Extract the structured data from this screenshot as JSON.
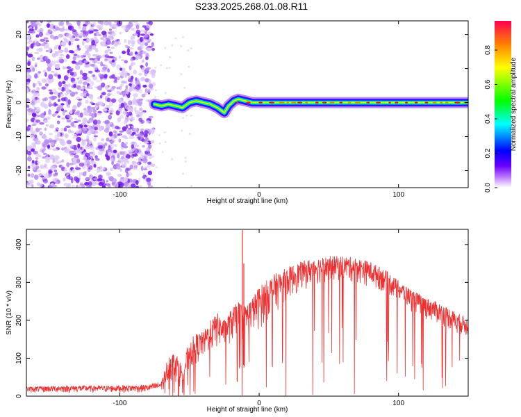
{
  "figure_title": "S233.2025.268.01.08.R11",
  "colors": {
    "line": "#f03030",
    "axis": "#000000",
    "scatter_light": "#dcc8f8",
    "scatter_mid": "#b88cf0",
    "scatter_dark": "#7a1ff0"
  },
  "chart_data": [
    {
      "type": "heatmap",
      "title": "",
      "xlabel": "Height of straight line (km)",
      "ylabel": "Frequency (Hz)",
      "xlim": [
        -167,
        150
      ],
      "ylim": [
        -25,
        24
      ],
      "xticks": [
        -100,
        0,
        100
      ],
      "xtick_labels": [
        "-100",
        "0",
        "100"
      ],
      "yticks": [
        -20,
        -10,
        0,
        10,
        20
      ],
      "ytick_labels": [
        "-20",
        "-10",
        "0",
        "10",
        "20"
      ],
      "colorbar": {
        "label": "Normalized spectral amplitude",
        "range": [
          0,
          0.97
        ],
        "ticks": [
          0.0,
          0.2,
          0.4,
          0.6,
          0.8
        ],
        "tick_labels": [
          "0.0",
          "0.2",
          "0.4",
          "0.6",
          "0.8"
        ],
        "colormap": [
          "#ffffff",
          "#6a00ff",
          "#0000ff",
          "#00ffff",
          "#00ff00",
          "#ffff00",
          "#ff8000",
          "#ff0050"
        ]
      },
      "noise_region": {
        "x_range": [
          -167,
          -75
        ],
        "y_range": [
          -25,
          24
        ],
        "level": 0.15
      },
      "ridge": [
        {
          "x": -75,
          "y": -0.5
        },
        {
          "x": -70,
          "y": -1
        },
        {
          "x": -65,
          "y": -0.5
        },
        {
          "x": -60,
          "y": -1
        },
        {
          "x": -55,
          "y": -1.5
        },
        {
          "x": -50,
          "y": 0
        },
        {
          "x": -45,
          "y": 0.5
        },
        {
          "x": -40,
          "y": 0
        },
        {
          "x": -35,
          "y": -0.5
        },
        {
          "x": -30,
          "y": -1.5
        },
        {
          "x": -25,
          "y": -3
        },
        {
          "x": -22,
          "y": -1
        },
        {
          "x": -18,
          "y": 0.5
        },
        {
          "x": -15,
          "y": 1
        },
        {
          "x": -10,
          "y": 0.5
        },
        {
          "x": -5,
          "y": 0
        },
        {
          "x": 0,
          "y": 0
        },
        {
          "x": 50,
          "y": 0
        },
        {
          "x": 100,
          "y": 0
        },
        {
          "x": 150,
          "y": 0
        }
      ]
    },
    {
      "type": "line",
      "title": "",
      "xlabel": "Height of straight line (km)",
      "ylabel": "SNR (10 * v/v)",
      "xlim": [
        -167,
        150
      ],
      "ylim": [
        0,
        440
      ],
      "xticks": [
        -100,
        0,
        100
      ],
      "xtick_labels": [
        "-100",
        "0",
        "100"
      ],
      "yticks": [
        0,
        100,
        200,
        300,
        400
      ],
      "ytick_labels": [
        "0",
        "100",
        "200",
        "300",
        "400"
      ],
      "envelope": {
        "x": [
          -167,
          -140,
          -110,
          -80,
          -70,
          -65,
          -60,
          -55,
          -50,
          -45,
          -40,
          -35,
          -30,
          -25,
          -20,
          -15,
          -10,
          -5,
          0,
          10,
          20,
          30,
          40,
          50,
          60,
          70,
          80,
          90,
          100,
          110,
          120,
          130,
          140,
          150
        ],
        "upper": [
          25,
          28,
          28,
          30,
          40,
          110,
          120,
          80,
          150,
          165,
          170,
          200,
          220,
          200,
          230,
          250,
          240,
          260,
          290,
          320,
          340,
          355,
          365,
          370,
          370,
          365,
          355,
          335,
          305,
          280,
          260,
          245,
          225,
          205
        ],
        "lower": [
          8,
          8,
          8,
          8,
          10,
          30,
          35,
          15,
          60,
          80,
          95,
          110,
          120,
          125,
          135,
          150,
          155,
          165,
          170,
          215,
          250,
          275,
          290,
          300,
          300,
          295,
          285,
          270,
          245,
          220,
          200,
          185,
          165,
          150
        ]
      },
      "spikes": [
        {
          "x": -12,
          "y": 438
        },
        {
          "x": -11,
          "y": 350
        }
      ]
    }
  ]
}
